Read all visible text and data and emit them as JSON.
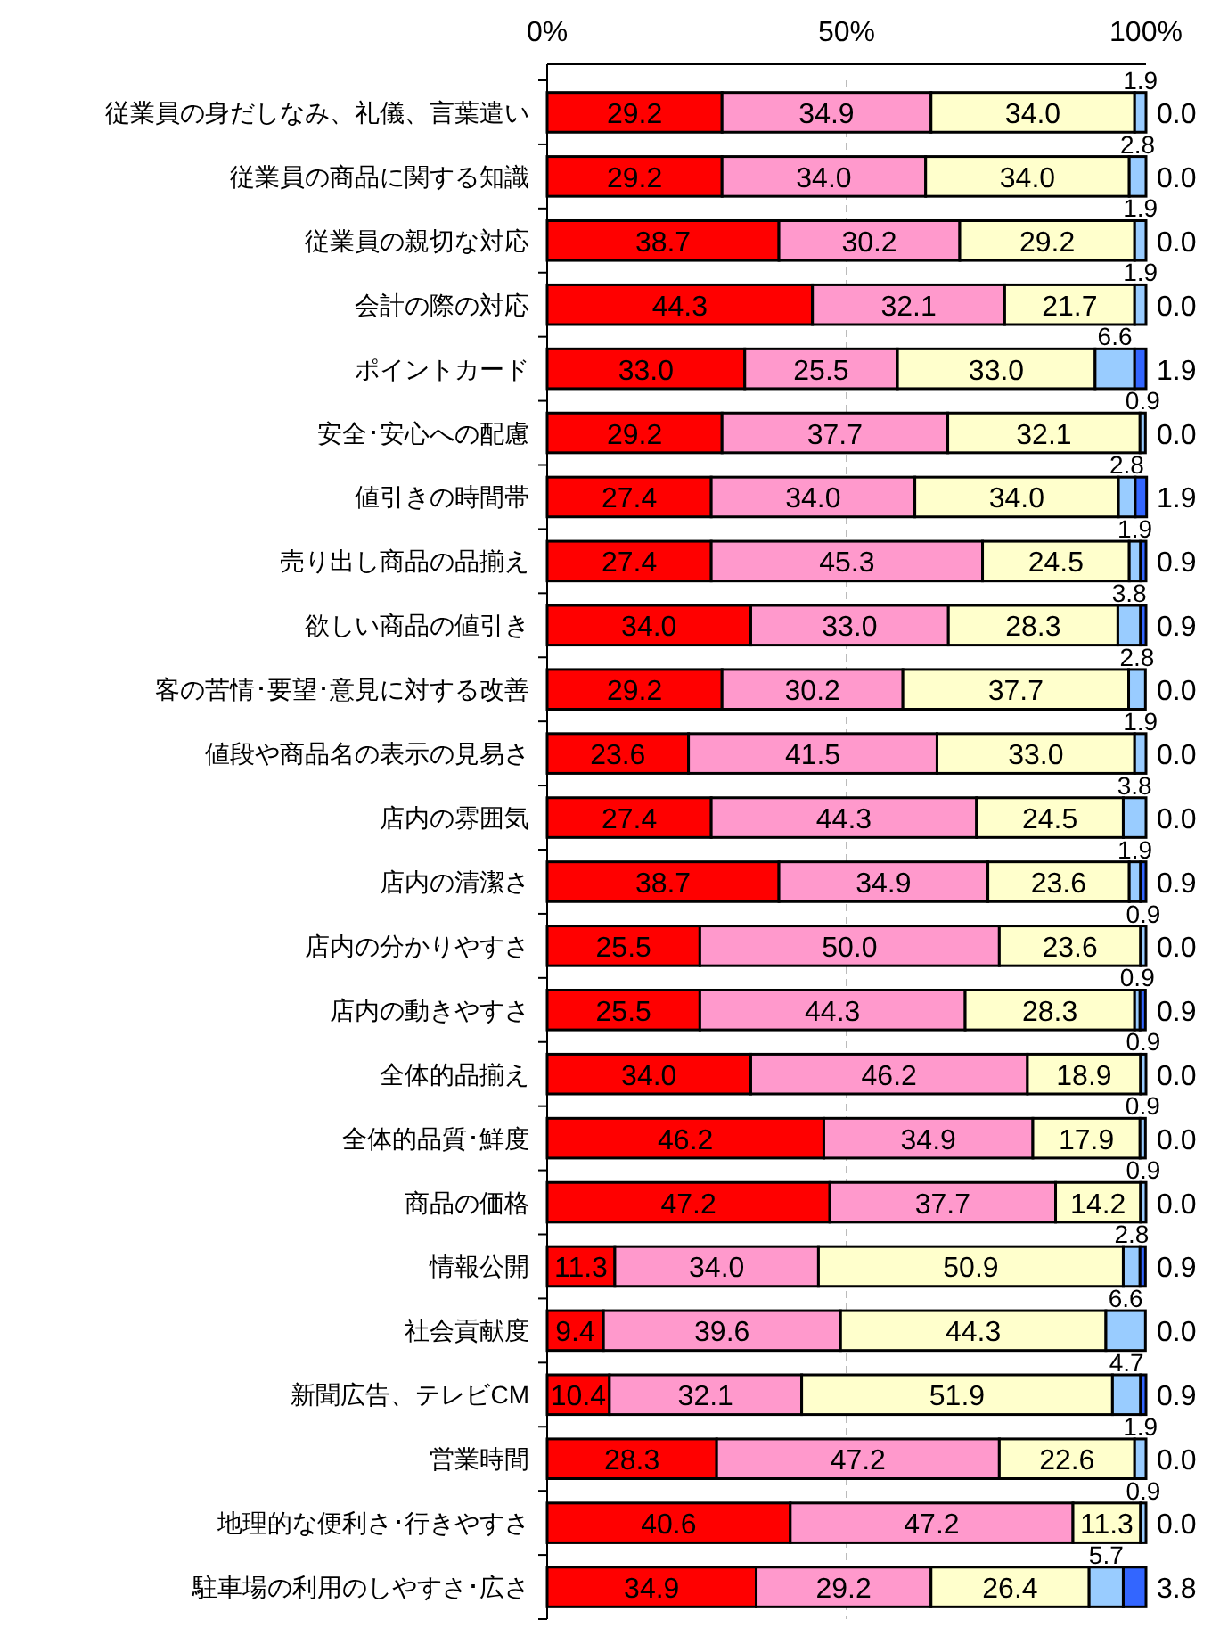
{
  "chart_data": {
    "type": "bar",
    "orientation": "horizontal",
    "stacked": true,
    "grid": "x",
    "xlim": [
      0,
      100
    ],
    "xticks": [
      {
        "value": 0,
        "label": "0%"
      },
      {
        "value": 50,
        "label": "50%"
      },
      {
        "value": 100,
        "label": "100%"
      }
    ],
    "categories": [
      "従業員の身だしなみ、礼儀、言葉遣い",
      "従業員の商品に関する知識",
      "従業員の親切な対応",
      "会計の際の対応",
      "ポイントカード",
      "安全･安心への配慮",
      "値引きの時間帯",
      "売り出し商品の品揃え",
      "欲しい商品の値引き",
      "客の苦情･要望･意見に対する改善",
      "値段や商品名の表示の見易さ",
      "店内の雰囲気",
      "店内の清潔さ",
      "店内の分かりやすさ",
      "店内の動きやすさ",
      "全体的品揃え",
      "全体的品質･鮮度",
      "商品の価格",
      "情報公開",
      "社会貢献度",
      "新聞広告、テレビCM",
      "営業時間",
      "地理的な便利さ･行きやすさ",
      "駐車場の利用のしやすさ･広さ"
    ],
    "series": [
      {
        "color": "#ff0000",
        "values": [
          29.2,
          29.2,
          38.7,
          44.3,
          33.0,
          29.2,
          27.4,
          27.4,
          34.0,
          29.2,
          23.6,
          27.4,
          38.7,
          25.5,
          25.5,
          34.0,
          46.2,
          47.2,
          11.3,
          9.4,
          10.4,
          28.3,
          40.6,
          34.9
        ],
        "value_labels": [
          "29.2",
          "29.2",
          "38.7",
          "44.3",
          "33.0",
          "29.2",
          "27.4",
          "27.4",
          "34.0",
          "29.2",
          "23.6",
          "27.4",
          "38.7",
          "25.5",
          "25.5",
          "34.0",
          "46.2",
          "47.2",
          "11.3",
          "9.4",
          "10.4",
          "28.3",
          "40.6",
          "34.9"
        ]
      },
      {
        "color": "#ff99cc",
        "values": [
          34.9,
          34.0,
          30.2,
          32.1,
          25.5,
          37.7,
          34.0,
          45.3,
          33.0,
          30.2,
          41.5,
          44.3,
          34.9,
          50.0,
          44.3,
          46.2,
          34.9,
          37.7,
          34.0,
          39.6,
          32.1,
          47.2,
          47.2,
          29.2
        ],
        "value_labels": [
          "34.9",
          "34.0",
          "30.2",
          "32.1",
          "25.5",
          "37.7",
          "34.0",
          "45.3",
          "33.0",
          "30.2",
          "41.5",
          "44.3",
          "34.9",
          "50.0",
          "44.3",
          "46.2",
          "34.9",
          "37.7",
          "34.0",
          "39.6",
          "32.1",
          "47.2",
          "47.2",
          "29.2"
        ]
      },
      {
        "color": "#ffffcc",
        "values": [
          34.0,
          34.0,
          29.2,
          21.7,
          33.0,
          32.1,
          34.0,
          24.5,
          28.3,
          37.7,
          33.0,
          24.5,
          23.6,
          23.6,
          28.3,
          18.9,
          17.9,
          14.2,
          50.9,
          44.3,
          51.9,
          22.6,
          11.3,
          26.4
        ],
        "value_labels": [
          "34.0",
          "34.0",
          "29.2",
          "21.7",
          "33.0",
          "32.1",
          "34.0",
          "24.5",
          "28.3",
          "37.7",
          "33.0",
          "24.5",
          "23.6",
          "23.6",
          "28.3",
          "18.9",
          "17.9",
          "14.2",
          "50.9",
          "44.3",
          "51.9",
          "22.6",
          "11.3",
          "26.4"
        ]
      },
      {
        "color": "#99ccff",
        "values": [
          1.9,
          2.8,
          1.9,
          1.9,
          6.6,
          0.9,
          2.8,
          1.9,
          3.8,
          2.8,
          1.9,
          3.8,
          1.9,
          0.9,
          0.9,
          0.9,
          0.9,
          0.9,
          2.8,
          6.6,
          4.7,
          1.9,
          0.9,
          5.7
        ],
        "value_labels": [
          "1.9",
          "2.8",
          "1.9",
          "1.9",
          "6.6",
          "0.9",
          "2.8",
          "1.9",
          "3.8",
          "2.8",
          "1.9",
          "3.8",
          "1.9",
          "0.9",
          "0.9",
          "0.9",
          "0.9",
          "0.9",
          "2.8",
          "6.6",
          "4.7",
          "1.9",
          "0.9",
          "5.7"
        ]
      },
      {
        "color": "#3366ff",
        "values": [
          0.0,
          0.0,
          0.0,
          0.0,
          1.9,
          0.0,
          1.9,
          0.9,
          0.9,
          0.0,
          0.0,
          0.0,
          0.9,
          0.0,
          0.9,
          0.0,
          0.0,
          0.0,
          0.9,
          0.0,
          0.9,
          0.0,
          0.0,
          3.8
        ],
        "value_labels": [
          "0.0",
          "0.0",
          "0.0",
          "0.0",
          "1.9",
          "0.0",
          "1.9",
          "0.9",
          "0.9",
          "0.0",
          "0.0",
          "0.0",
          "0.9",
          "0.0",
          "0.9",
          "0.0",
          "0.0",
          "0.0",
          "0.9",
          "0.0",
          "0.9",
          "0.0",
          "0.0",
          "3.8"
        ]
      }
    ]
  }
}
